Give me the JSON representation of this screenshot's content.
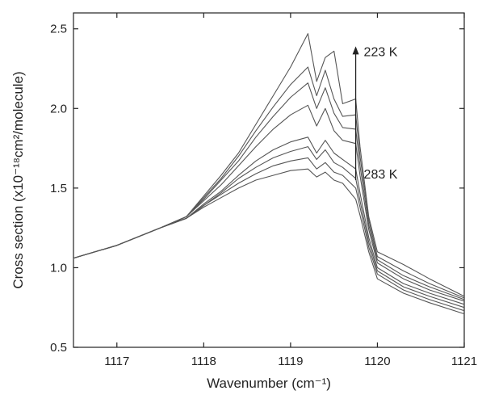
{
  "chart_data": {
    "type": "line",
    "xlabel": "Wavenumber (cm⁻¹)",
    "ylabel": "Cross section (x10⁻¹⁸cm²/molecule)",
    "xlim": [
      1116.5,
      1121
    ],
    "ylim": [
      0.5,
      2.6
    ],
    "x_ticks": [
      "1117",
      "1118",
      "1119",
      "1120",
      "1121"
    ],
    "y_ticks": [
      "0.5",
      "1.0",
      "1.5",
      "2.0",
      "2.5"
    ],
    "x_tick_values": [
      1117,
      1118,
      1119,
      1120,
      1121
    ],
    "y_tick_values": [
      0.5,
      1.0,
      1.5,
      2.0,
      2.5
    ],
    "grid": false,
    "annotations": {
      "top_label": "223 K",
      "bottom_label": "283 K",
      "arrow_from_y": 1.55,
      "arrow_to_y": 2.39,
      "arrow_x": 1119.75
    },
    "colors": {
      "series": "#555555",
      "axis": "#222222"
    },
    "series": [
      {
        "values": [
          [
            1116.5,
            1.06
          ],
          [
            1117.0,
            1.14
          ],
          [
            1117.5,
            1.25
          ],
          [
            1117.8,
            1.31
          ],
          [
            1118.0,
            1.38
          ],
          [
            1118.2,
            1.44
          ],
          [
            1118.4,
            1.5
          ],
          [
            1118.6,
            1.55
          ],
          [
            1118.8,
            1.58
          ],
          [
            1119.0,
            1.61
          ],
          [
            1119.2,
            1.62
          ],
          [
            1119.3,
            1.57
          ],
          [
            1119.4,
            1.6
          ],
          [
            1119.5,
            1.55
          ],
          [
            1119.6,
            1.53
          ],
          [
            1119.75,
            1.43
          ],
          [
            1119.8,
            1.33
          ],
          [
            1119.9,
            1.1
          ],
          [
            1120.0,
            0.93
          ],
          [
            1120.3,
            0.84
          ],
          [
            1120.6,
            0.78
          ],
          [
            1121.0,
            0.71
          ]
        ]
      },
      {
        "values": [
          [
            1116.5,
            1.06
          ],
          [
            1117.0,
            1.14
          ],
          [
            1117.5,
            1.25
          ],
          [
            1117.8,
            1.31
          ],
          [
            1118.0,
            1.39
          ],
          [
            1118.2,
            1.46
          ],
          [
            1118.4,
            1.53
          ],
          [
            1118.6,
            1.59
          ],
          [
            1118.8,
            1.64
          ],
          [
            1119.0,
            1.67
          ],
          [
            1119.2,
            1.69
          ],
          [
            1119.3,
            1.62
          ],
          [
            1119.4,
            1.66
          ],
          [
            1119.5,
            1.6
          ],
          [
            1119.6,
            1.58
          ],
          [
            1119.75,
            1.5
          ],
          [
            1119.8,
            1.38
          ],
          [
            1119.9,
            1.13
          ],
          [
            1120.0,
            0.96
          ],
          [
            1120.3,
            0.86
          ],
          [
            1120.6,
            0.8
          ],
          [
            1121.0,
            0.73
          ]
        ]
      },
      {
        "values": [
          [
            1116.5,
            1.06
          ],
          [
            1117.0,
            1.14
          ],
          [
            1117.5,
            1.25
          ],
          [
            1117.8,
            1.31
          ],
          [
            1118.0,
            1.39
          ],
          [
            1118.2,
            1.47
          ],
          [
            1118.4,
            1.56
          ],
          [
            1118.6,
            1.63
          ],
          [
            1118.8,
            1.69
          ],
          [
            1119.0,
            1.73
          ],
          [
            1119.2,
            1.76
          ],
          [
            1119.3,
            1.68
          ],
          [
            1119.4,
            1.74
          ],
          [
            1119.5,
            1.66
          ],
          [
            1119.6,
            1.63
          ],
          [
            1119.75,
            1.56
          ],
          [
            1119.8,
            1.42
          ],
          [
            1119.9,
            1.16
          ],
          [
            1120.0,
            0.98
          ],
          [
            1120.3,
            0.88
          ],
          [
            1120.6,
            0.82
          ],
          [
            1121.0,
            0.75
          ]
        ]
      },
      {
        "values": [
          [
            1116.5,
            1.06
          ],
          [
            1117.0,
            1.14
          ],
          [
            1117.5,
            1.25
          ],
          [
            1117.8,
            1.31
          ],
          [
            1118.0,
            1.4
          ],
          [
            1118.2,
            1.48
          ],
          [
            1118.4,
            1.58
          ],
          [
            1118.6,
            1.67
          ],
          [
            1118.8,
            1.74
          ],
          [
            1119.0,
            1.79
          ],
          [
            1119.2,
            1.82
          ],
          [
            1119.3,
            1.72
          ],
          [
            1119.4,
            1.8
          ],
          [
            1119.5,
            1.72
          ],
          [
            1119.6,
            1.68
          ],
          [
            1119.75,
            1.62
          ],
          [
            1119.8,
            1.47
          ],
          [
            1119.9,
            1.19
          ],
          [
            1120.0,
            1.0
          ],
          [
            1120.3,
            0.9
          ],
          [
            1120.6,
            0.84
          ],
          [
            1121.0,
            0.77
          ]
        ]
      },
      {
        "values": [
          [
            1116.5,
            1.06
          ],
          [
            1117.0,
            1.14
          ],
          [
            1117.5,
            1.25
          ],
          [
            1117.8,
            1.32
          ],
          [
            1118.0,
            1.42
          ],
          [
            1118.2,
            1.52
          ],
          [
            1118.4,
            1.64
          ],
          [
            1118.6,
            1.76
          ],
          [
            1118.8,
            1.87
          ],
          [
            1119.0,
            1.96
          ],
          [
            1119.2,
            2.02
          ],
          [
            1119.3,
            1.89
          ],
          [
            1119.4,
            2.0
          ],
          [
            1119.5,
            1.86
          ],
          [
            1119.6,
            1.8
          ],
          [
            1119.75,
            1.78
          ],
          [
            1119.8,
            1.58
          ],
          [
            1119.9,
            1.24
          ],
          [
            1120.0,
            1.03
          ],
          [
            1120.3,
            0.93
          ],
          [
            1120.6,
            0.86
          ],
          [
            1121.0,
            0.79
          ]
        ]
      },
      {
        "values": [
          [
            1116.5,
            1.06
          ],
          [
            1117.0,
            1.14
          ],
          [
            1117.5,
            1.25
          ],
          [
            1117.8,
            1.32
          ],
          [
            1118.0,
            1.43
          ],
          [
            1118.2,
            1.55
          ],
          [
            1118.4,
            1.67
          ],
          [
            1118.6,
            1.82
          ],
          [
            1118.8,
            1.95
          ],
          [
            1119.0,
            2.07
          ],
          [
            1119.2,
            2.16
          ],
          [
            1119.3,
            2.0
          ],
          [
            1119.4,
            2.13
          ],
          [
            1119.5,
            1.97
          ],
          [
            1119.6,
            1.88
          ],
          [
            1119.75,
            1.87
          ],
          [
            1119.8,
            1.64
          ],
          [
            1119.9,
            1.27
          ],
          [
            1120.0,
            1.05
          ],
          [
            1120.3,
            0.95
          ],
          [
            1120.6,
            0.88
          ],
          [
            1121.0,
            0.8
          ]
        ]
      },
      {
        "values": [
          [
            1116.5,
            1.06
          ],
          [
            1117.0,
            1.14
          ],
          [
            1117.5,
            1.25
          ],
          [
            1117.8,
            1.32
          ],
          [
            1118.0,
            1.44
          ],
          [
            1118.2,
            1.56
          ],
          [
            1118.4,
            1.7
          ],
          [
            1118.6,
            1.86
          ],
          [
            1118.8,
            2.01
          ],
          [
            1119.0,
            2.15
          ],
          [
            1119.2,
            2.26
          ],
          [
            1119.3,
            2.08
          ],
          [
            1119.4,
            2.24
          ],
          [
            1119.5,
            2.06
          ],
          [
            1119.6,
            1.95
          ],
          [
            1119.75,
            1.96
          ],
          [
            1119.8,
            1.7
          ],
          [
            1119.9,
            1.3
          ],
          [
            1120.0,
            1.07
          ],
          [
            1120.3,
            0.98
          ],
          [
            1120.6,
            0.9
          ],
          [
            1121.0,
            0.81
          ]
        ]
      },
      {
        "values": [
          [
            1116.5,
            1.06
          ],
          [
            1117.0,
            1.14
          ],
          [
            1117.5,
            1.25
          ],
          [
            1117.8,
            1.32
          ],
          [
            1118.0,
            1.45
          ],
          [
            1118.2,
            1.58
          ],
          [
            1118.4,
            1.72
          ],
          [
            1118.6,
            1.9
          ],
          [
            1118.8,
            2.08
          ],
          [
            1119.0,
            2.26
          ],
          [
            1119.2,
            2.47
          ],
          [
            1119.3,
            2.17
          ],
          [
            1119.4,
            2.32
          ],
          [
            1119.5,
            2.36
          ],
          [
            1119.6,
            2.03
          ],
          [
            1119.75,
            2.06
          ],
          [
            1119.8,
            1.76
          ],
          [
            1119.9,
            1.32
          ],
          [
            1120.0,
            1.1
          ],
          [
            1120.3,
            1.02
          ],
          [
            1120.6,
            0.93
          ],
          [
            1121.0,
            0.82
          ]
        ]
      }
    ]
  }
}
